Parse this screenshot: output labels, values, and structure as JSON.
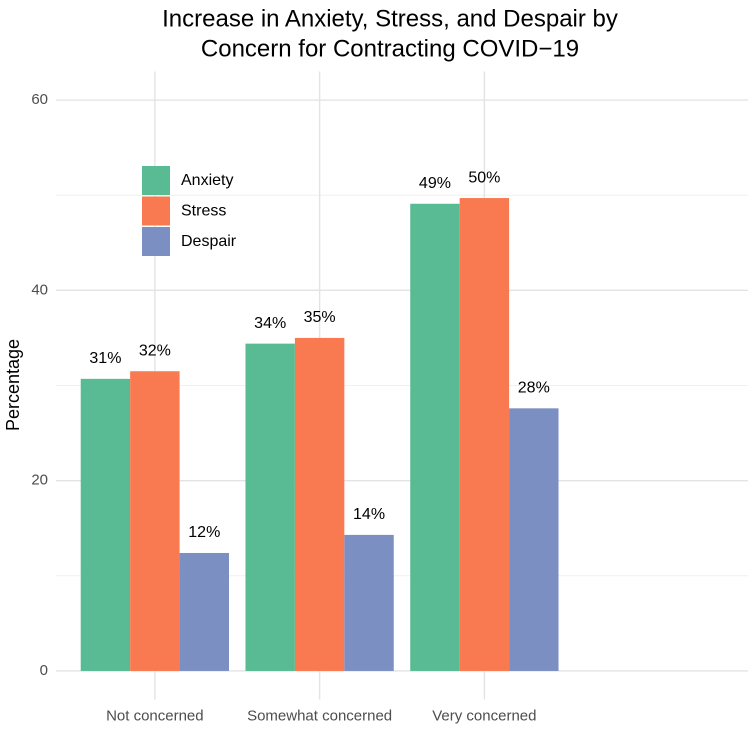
{
  "chart_data": {
    "type": "bar",
    "title": [
      "Increase in Anxiety, Stress, and Despair by",
      "Concern for Contracting COVID−19"
    ],
    "y_label": "Percentage",
    "categories": [
      "Not concerned",
      "Somewhat concerned",
      "Very concerned"
    ],
    "series": [
      {
        "name": "Anxiety",
        "color": "#58bb93",
        "values": [
          30.7,
          34.4,
          49.1
        ],
        "value_labels": [
          "31%",
          "34%",
          "49%"
        ]
      },
      {
        "name": "Stress",
        "color": "#f97a50",
        "values": [
          31.5,
          35.0,
          49.7
        ],
        "value_labels": [
          "32%",
          "35%",
          "50%"
        ]
      },
      {
        "name": "Despair",
        "color": "#7b8fc2",
        "values": [
          12.4,
          14.3,
          27.6
        ],
        "value_labels": [
          "12%",
          "14%",
          "28%"
        ]
      }
    ],
    "ylim": [
      -3,
      63
    ],
    "yticks": [
      0,
      20,
      40,
      60
    ],
    "minor_yticks": [
      10,
      30,
      50
    ],
    "grid": true,
    "legend": "top-left"
  }
}
